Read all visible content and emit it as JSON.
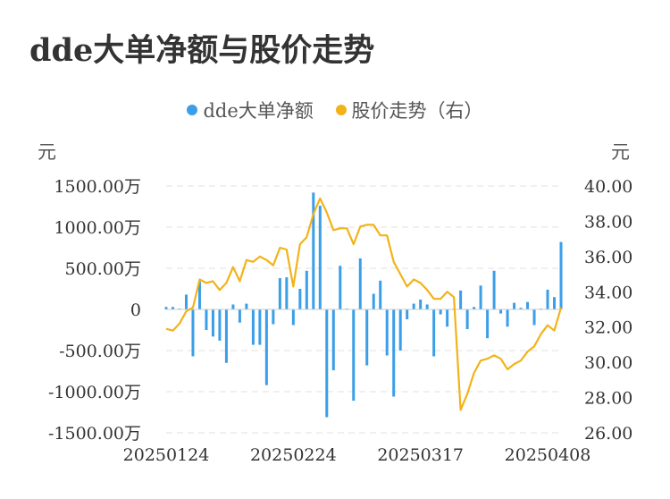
{
  "title": "dde大单净额与股价走势",
  "legend": {
    "items": [
      {
        "label": "dde大单净额",
        "color": "#3a9ee8"
      },
      {
        "label": "股价走势（右）",
        "color": "#f2b31a"
      }
    ]
  },
  "units": {
    "left": "元",
    "right": "元"
  },
  "chart_data": {
    "type": "bar",
    "left_axis": {
      "ticks": [
        1500,
        1000,
        500,
        0,
        -500,
        -1000,
        -1500
      ],
      "tick_labels": [
        "1500.00万",
        "1000.00万",
        "500.00万",
        "0",
        "-500.00万",
        "-1000.00万",
        "-1500.00万"
      ],
      "ylim": [
        -1500,
        1500
      ]
    },
    "right_axis": {
      "ticks": [
        40,
        38,
        36,
        34,
        32,
        30,
        28,
        26
      ],
      "tick_labels": [
        "40.00",
        "38.00",
        "36.00",
        "34.00",
        "32.00",
        "30.00",
        "28.00",
        "26.00"
      ],
      "ylim": [
        26,
        40
      ]
    },
    "x_tick_labels": [
      {
        "label": "20250124",
        "index": 0
      },
      {
        "label": "20250224",
        "index": 19
      },
      {
        "label": "20250317",
        "index": 38
      },
      {
        "label": "20250408",
        "index": 57
      }
    ],
    "grid": true,
    "series": [
      {
        "name": "dde大单净额",
        "type": "bar",
        "axis": "left",
        "color": "#3a9ee8",
        "values": [
          30,
          30,
          10,
          180,
          -570,
          340,
          -250,
          -330,
          -380,
          -650,
          60,
          -160,
          70,
          -430,
          -430,
          -920,
          -180,
          380,
          390,
          -190,
          250,
          470,
          1420,
          1260,
          -1310,
          -740,
          530,
          10,
          -1110,
          620,
          -680,
          190,
          350,
          -560,
          -1060,
          -500,
          -120,
          70,
          120,
          60,
          -570,
          -60,
          -210,
          10,
          230,
          -240,
          30,
          290,
          -350,
          470,
          -50,
          -210,
          80,
          20,
          90,
          -190,
          10,
          240,
          150,
          820
        ]
      },
      {
        "name": "股价走势（右）",
        "type": "line",
        "axis": "right",
        "color": "#f2b31a",
        "values": [
          31.9,
          31.8,
          32.2,
          32.9,
          33.1,
          34.7,
          34.5,
          34.6,
          34.1,
          34.5,
          35.4,
          34.6,
          35.8,
          35.7,
          36.0,
          35.8,
          35.5,
          36.5,
          36.4,
          34.3,
          36.7,
          37.1,
          38.4,
          39.3,
          38.5,
          37.5,
          37.6,
          37.6,
          36.7,
          37.7,
          37.8,
          37.8,
          37.2,
          37.2,
          35.7,
          35.0,
          34.3,
          34.7,
          34.5,
          34.1,
          33.6,
          33.6,
          34.0,
          33.7,
          27.3,
          28.2,
          29.4,
          30.1,
          30.2,
          30.4,
          30.2,
          29.6,
          29.9,
          30.1,
          30.6,
          30.9,
          31.6,
          32.1,
          31.8,
          33.1
        ]
      }
    ]
  }
}
